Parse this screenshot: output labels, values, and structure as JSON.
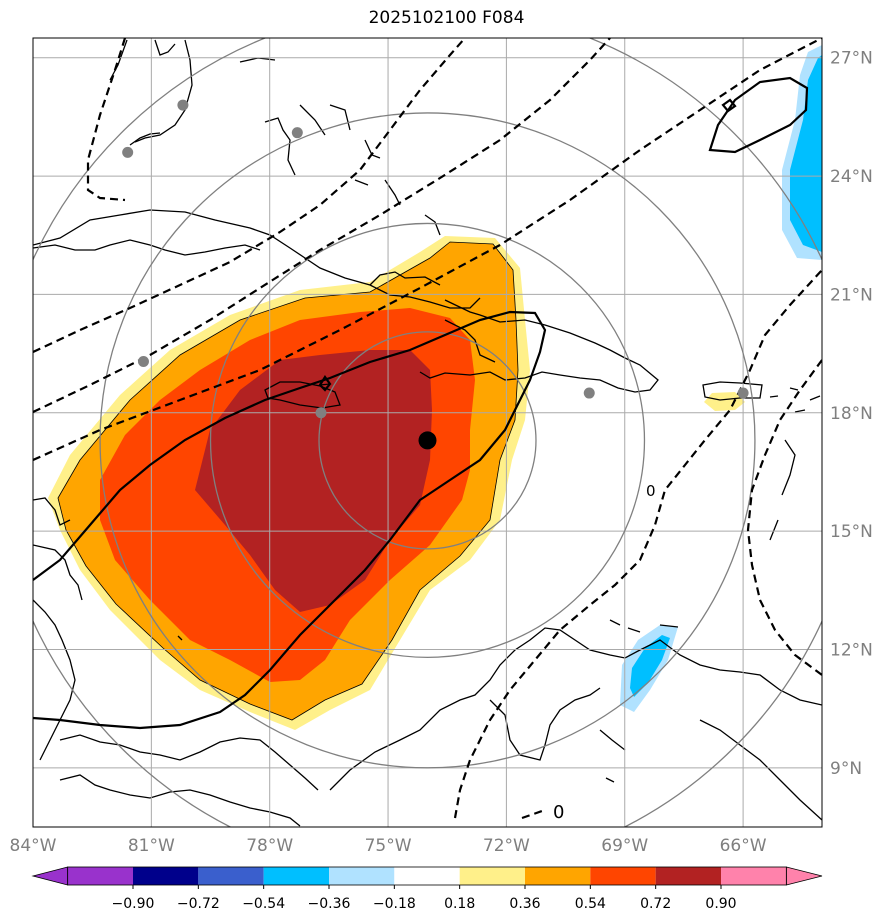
{
  "title": "2025102100 F084",
  "map": {
    "lon_range": [
      -84,
      -64
    ],
    "lat_range": [
      7.5,
      27.5
    ],
    "lon_ticks": [
      {
        "value": -84,
        "label": "84°W"
      },
      {
        "value": -81,
        "label": "81°W"
      },
      {
        "value": -78,
        "label": "78°W"
      },
      {
        "value": -75,
        "label": "75°W"
      },
      {
        "value": -72,
        "label": "72°W"
      },
      {
        "value": -69,
        "label": "69°W"
      },
      {
        "value": -66,
        "label": "66°W"
      }
    ],
    "lat_ticks": [
      {
        "value": 27,
        "label": "27°N"
      },
      {
        "value": 24,
        "label": "24°N"
      },
      {
        "value": 21,
        "label": "21°N"
      },
      {
        "value": 18,
        "label": "18°N"
      },
      {
        "value": 15,
        "label": "15°N"
      },
      {
        "value": 12,
        "label": "12°N"
      },
      {
        "value": 9,
        "label": "9°N"
      }
    ],
    "storm_center": {
      "lon": -74.0,
      "lat": 17.3
    },
    "range_ring_radii_deg": [
      2.75,
      5.5,
      8.3,
      11.0
    ],
    "station_dots": [
      {
        "lon": -80.2,
        "lat": 25.8
      },
      {
        "lon": -81.6,
        "lat": 24.6
      },
      {
        "lon": -77.3,
        "lat": 25.1
      },
      {
        "lon": -81.2,
        "lat": 19.3
      },
      {
        "lon": -76.7,
        "lat": 18.0
      },
      {
        "lon": -69.9,
        "lat": 18.5
      },
      {
        "lon": -66.0,
        "lat": 18.5
      }
    ],
    "contour_label": "0",
    "colors": {
      "grid": "#aaaaaa",
      "ring": "#808080",
      "dot": "#808080",
      "center": "#000000"
    }
  },
  "colorbar": {
    "bins": [
      {
        "color": "#9932cc"
      },
      {
        "color": "#00008b"
      },
      {
        "color": "#3a5fcd"
      },
      {
        "color": "#00bfff"
      },
      {
        "color": "#b0e2ff"
      },
      {
        "color": "#ffffff"
      },
      {
        "color": "#fff08a"
      },
      {
        "color": "#ffa500"
      },
      {
        "color": "#ff4500"
      },
      {
        "color": "#b22222"
      },
      {
        "color": "#ff82ab"
      }
    ],
    "tick_labels": [
      "−0.90",
      "−0.72",
      "−0.54",
      "−0.36",
      "−0.18",
      "0.18",
      "0.36",
      "0.54",
      "0.72",
      "0.90"
    ]
  }
}
